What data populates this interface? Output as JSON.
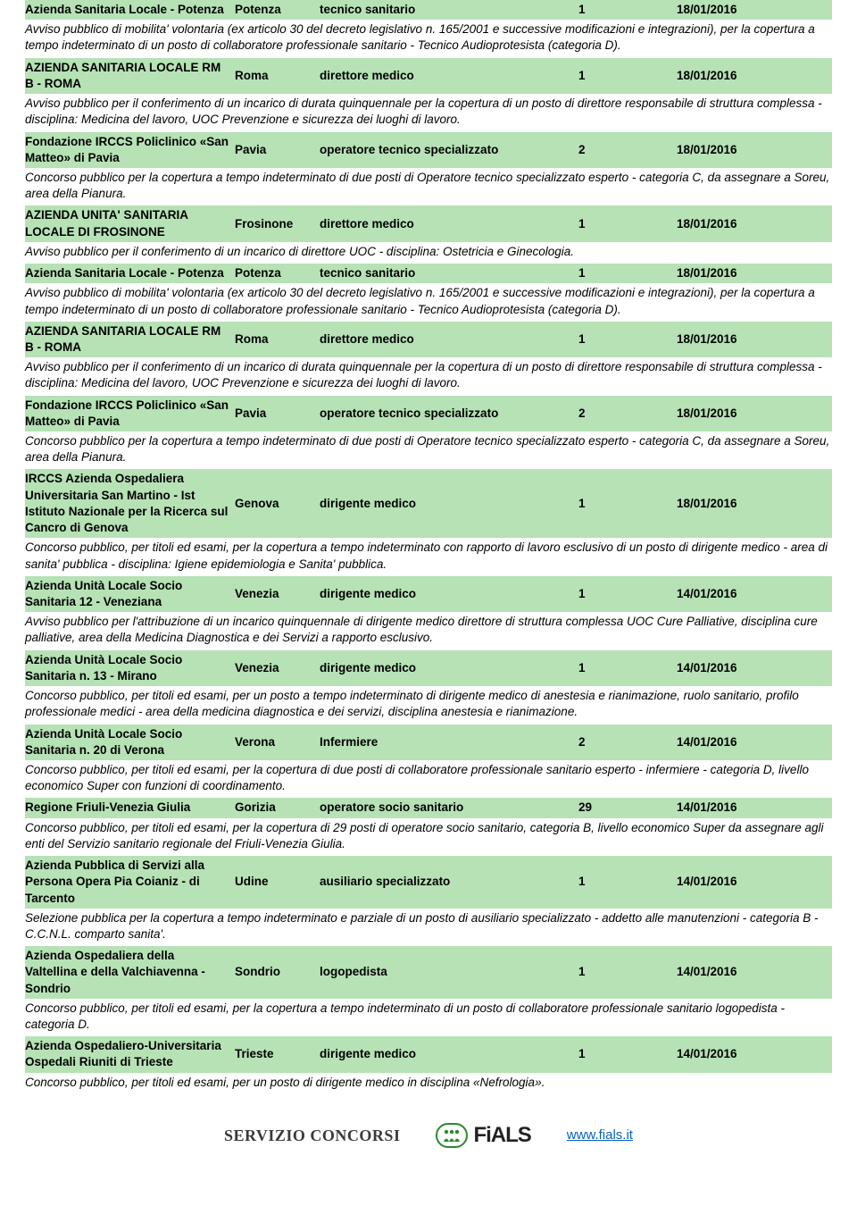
{
  "row_bg_green": "#b6e2b6",
  "text_color": "#000000",
  "link_color": "#0563c1",
  "footer": {
    "service_label": "SERVIZIO CONCORSI",
    "logo_text": "FiALS",
    "url": "www.fials.it"
  },
  "entries": [
    {
      "ente": "Azienda Sanitaria Locale - Potenza",
      "luogo": "Potenza",
      "ruolo": "tecnico sanitario",
      "n": "1",
      "data": "18/01/2016",
      "desc": "Avviso pubblico di mobilita' volontaria (ex articolo 30 del decreto legislativo n. 165/2001 e successive modificazioni e integrazioni), per la copertura a tempo indeterminato di un posto di collaboratore professionale sanitario - Tecnico Audioprotesista (categoria D)."
    },
    {
      "ente": "AZIENDA SANITARIA LOCALE RM B - ROMA",
      "luogo": "Roma",
      "ruolo": "direttore medico",
      "n": "1",
      "data": "18/01/2016",
      "desc": "Avviso pubblico per il conferimento di un incarico di durata quinquennale per la copertura di un posto di direttore responsabile di struttura complessa - disciplina: Medicina del lavoro, UOC Prevenzione e sicurezza dei luoghi di lavoro."
    },
    {
      "ente": "Fondazione IRCCS Policlinico «San Matteo» di Pavia",
      "luogo": "Pavia",
      "ruolo": "operatore tecnico specializzato",
      "n": "2",
      "data": "18/01/2016",
      "desc": "Concorso pubblico per la copertura a tempo indeterminato di due posti di Operatore tecnico specializzato esperto - categoria C, da assegnare a Soreu, area della Pianura."
    },
    {
      "ente": "AZIENDA UNITA' SANITARIA LOCALE DI FROSINONE",
      "luogo": "Frosinone",
      "ruolo": "direttore medico",
      "n": "1",
      "data": "18/01/2016",
      "desc": "Avviso pubblico per il conferimento di un incarico di direttore UOC - disciplina: Ostetricia e Ginecologia."
    },
    {
      "ente": "Azienda Sanitaria Locale - Potenza",
      "luogo": "Potenza",
      "ruolo": "tecnico sanitario",
      "n": "1",
      "data": "18/01/2016",
      "desc": "Avviso pubblico di mobilita' volontaria (ex articolo 30 del decreto legislativo n. 165/2001 e successive modificazioni e integrazioni), per la copertura a tempo indeterminato di un posto di collaboratore professionale sanitario - Tecnico Audioprotesista (categoria D)."
    },
    {
      "ente": "AZIENDA SANITARIA LOCALE RM B - ROMA",
      "luogo": "Roma",
      "ruolo": "direttore medico",
      "n": "1",
      "data": "18/01/2016",
      "desc": "Avviso pubblico per il conferimento di un incarico di durata quinquennale per la copertura di un posto di direttore responsabile di struttura complessa - disciplina: Medicina del lavoro, UOC Prevenzione e sicurezza dei luoghi di lavoro."
    },
    {
      "ente": "Fondazione IRCCS Policlinico «San Matteo» di Pavia",
      "luogo": "Pavia",
      "ruolo": "operatore tecnico specializzato",
      "n": "2",
      "data": "18/01/2016",
      "desc": "Concorso pubblico per la copertura a tempo indeterminato di due posti di Operatore tecnico specializzato esperto - categoria C, da assegnare a Soreu, area della Pianura."
    },
    {
      "ente": "IRCCS Azienda Ospedaliera Universitaria San Martino - Ist Istituto Nazionale per la Ricerca sul Cancro di Genova",
      "luogo": "Genova",
      "ruolo": "dirigente medico",
      "n": "1",
      "data": "18/01/2016",
      "desc": "Concorso pubblico, per titoli ed esami, per la copertura a tempo indeterminato con rapporto di lavoro esclusivo di un posto di dirigente medico - area di sanita' pubblica - disciplina: Igiene epidemiologia e Sanita' pubblica."
    },
    {
      "ente": "Azienda Unità Locale Socio Sanitaria 12 - Veneziana",
      "luogo": "Venezia",
      "ruolo": "dirigente medico",
      "n": "1",
      "data": "14/01/2016",
      "desc": "Avviso pubblico per l'attribuzione di un incarico quinquennale di dirigente medico direttore di struttura complessa UOC Cure Palliative, disciplina cure palliative, area della Medicina Diagnostica e dei Servizi a rapporto esclusivo."
    },
    {
      "ente": "Azienda Unità Locale Socio Sanitaria n. 13 - Mirano",
      "luogo": "Venezia",
      "ruolo": "dirigente medico",
      "n": "1",
      "data": "14/01/2016",
      "desc": "Concorso pubblico, per titoli ed esami, per un posto a tempo indeterminato di dirigente medico di anestesia e rianimazione, ruolo sanitario, profilo professionale medici - area della medicina diagnostica e dei servizi, disciplina anestesia e rianimazione."
    },
    {
      "ente": "Azienda Unità Locale Socio Sanitaria n. 20 di Verona",
      "luogo": "Verona",
      "ruolo": "Infermiere",
      "n": "2",
      "data": "14/01/2016",
      "desc": "Concorso pubblico, per titoli ed esami, per la copertura di due posti di collaboratore professionale sanitario esperto - infermiere - categoria D, livello economico Super con funzioni di coordinamento."
    },
    {
      "ente": "Regione Friuli-Venezia Giulia",
      "luogo": "Gorizia",
      "ruolo": "operatore socio sanitario",
      "n": "29",
      "data": "14/01/2016",
      "desc": "Concorso pubblico, per titoli ed esami, per la copertura di 29 posti di operatore socio sanitario, categoria B, livello economico Super da assegnare agli enti del Servizio sanitario regionale del Friuli-Venezia Giulia."
    },
    {
      "ente": "Azienda Pubblica di Servizi alla Persona Opera Pia Coianiz - di Tarcento",
      "luogo": "Udine",
      "ruolo": "ausiliario specializzato",
      "n": "1",
      "data": "14/01/2016",
      "desc": "Selezione pubblica per la copertura a tempo indeterminato e parziale di un posto di ausiliario specializzato - addetto alle manutenzioni - categoria B - C.C.N.L. comparto sanita'."
    },
    {
      "ente": "Azienda Ospedaliera della Valtellina e della Valchiavenna - Sondrio",
      "luogo": "Sondrio",
      "ruolo": "logopedista",
      "n": "1",
      "data": "14/01/2016",
      "desc": "Concorso pubblico, per titoli ed esami, per la copertura a tempo indeterminato di un posto di collaboratore professionale sanitario logopedista - categoria D."
    },
    {
      "ente": "Azienda Ospedaliero-Universitaria Ospedali Riuniti di Trieste",
      "luogo": "Trieste",
      "ruolo": "dirigente medico",
      "n": "1",
      "data": "14/01/2016",
      "desc": "Concorso pubblico, per titoli ed esami, per un posto di dirigente medico in disciplina «Nefrologia»."
    }
  ]
}
